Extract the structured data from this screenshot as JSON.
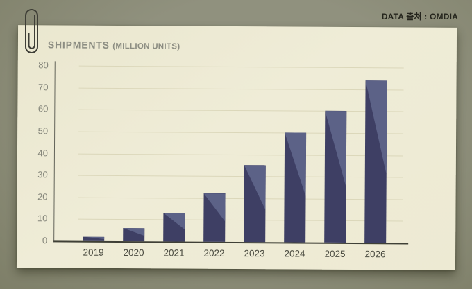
{
  "source_label": "DATA 출처 : OMDIA",
  "chart_data": {
    "type": "bar",
    "title": "SHIPMENTS",
    "title_suffix": "(MILLION UNITS)",
    "categories": [
      "2019",
      "2020",
      "2021",
      "2022",
      "2023",
      "2024",
      "2025",
      "2026"
    ],
    "values": [
      2,
      6,
      13,
      22,
      35,
      50,
      60,
      74
    ],
    "ylim": [
      0,
      80
    ],
    "yticks": [
      0,
      10,
      20,
      30,
      40,
      50,
      60,
      70,
      80
    ],
    "xlabel": "",
    "ylabel": "",
    "grid": true,
    "legend_position": "none"
  },
  "colors": {
    "background": "#90917e",
    "background_edge": "#7e7f68",
    "card": "#efecd7",
    "bar_dark": "#3e3f64",
    "bar_light": "#5c6287",
    "grid": "#dbd7ba",
    "axis": "#3f4036",
    "y_axis": "#63645a",
    "y_label": "#84857a",
    "x_label": "#4c4d42",
    "title": "#8c8d82",
    "source": "#24241c",
    "paperclip": "#3e3e36"
  }
}
